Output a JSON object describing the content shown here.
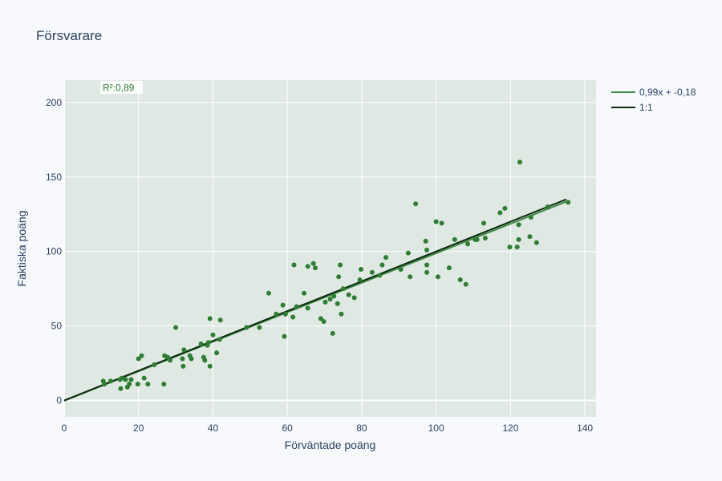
{
  "colors": {
    "page_bg": "#f7f9fd",
    "plot_bg": "#dfe8e2",
    "grid": "#ffffff",
    "points": "#2e7d32",
    "fit_line": "#3f8a45",
    "identity_line": "#0d2a10",
    "text": "#2a3f5f",
    "r2_text": "#2e7d32"
  },
  "chart_data": {
    "type": "scatter",
    "title": "Försvarare",
    "xlabel": "Förväntade poäng",
    "ylabel": "Faktiska poäng",
    "xlim": [
      0,
      143
    ],
    "ylim": [
      -11,
      215
    ],
    "xticks": [
      0,
      20,
      40,
      60,
      80,
      100,
      120,
      140
    ],
    "yticks": [
      0,
      50,
      100,
      150,
      200
    ],
    "grid": true,
    "legend_position": "top-right outside plot",
    "annotation": "R²:0,89",
    "lines": [
      {
        "name": "0,99x + -0,18",
        "slope": 0.99,
        "intercept": -0.18,
        "x_range": [
          0,
          135.5
        ]
      },
      {
        "name": "1:1",
        "slope": 1,
        "intercept": 0,
        "x_range": [
          0,
          135
        ]
      }
    ],
    "points": [
      [
        10.5,
        13
      ],
      [
        10.8,
        11
      ],
      [
        12.5,
        13
      ],
      [
        15,
        14
      ],
      [
        15.2,
        8
      ],
      [
        15.5,
        15
      ],
      [
        16.5,
        14
      ],
      [
        17,
        9
      ],
      [
        17.5,
        11
      ],
      [
        18,
        14
      ],
      [
        19.8,
        11
      ],
      [
        20,
        28
      ],
      [
        20.8,
        30
      ],
      [
        21.5,
        15
      ],
      [
        22.5,
        11
      ],
      [
        24.2,
        24
      ],
      [
        26.8,
        11
      ],
      [
        27,
        30
      ],
      [
        27.8,
        29
      ],
      [
        28.5,
        27
      ],
      [
        30,
        49
      ],
      [
        31.8,
        28
      ],
      [
        32,
        23
      ],
      [
        32.2,
        34
      ],
      [
        33.8,
        30
      ],
      [
        34.2,
        28
      ],
      [
        36.8,
        38
      ],
      [
        37.5,
        29
      ],
      [
        37.8,
        27
      ],
      [
        38.5,
        37
      ],
      [
        38.8,
        39
      ],
      [
        39.2,
        55
      ],
      [
        39.2,
        23
      ],
      [
        40,
        44
      ],
      [
        41,
        32
      ],
      [
        41.8,
        41
      ],
      [
        42,
        54
      ],
      [
        49,
        49
      ],
      [
        52.5,
        49
      ],
      [
        55,
        72
      ],
      [
        57,
        58
      ],
      [
        58.8,
        64
      ],
      [
        59.2,
        43
      ],
      [
        59.5,
        58
      ],
      [
        61.5,
        56
      ],
      [
        61.8,
        91
      ],
      [
        62.5,
        63
      ],
      [
        64.5,
        72
      ],
      [
        65.5,
        62
      ],
      [
        65.5,
        90
      ],
      [
        67,
        92
      ],
      [
        67.5,
        89
      ],
      [
        69,
        55
      ],
      [
        69.8,
        53
      ],
      [
        70.2,
        66
      ],
      [
        71.5,
        68
      ],
      [
        72.2,
        45
      ],
      [
        72.5,
        70
      ],
      [
        73.5,
        65
      ],
      [
        73.8,
        83
      ],
      [
        74.2,
        91
      ],
      [
        74.5,
        58
      ],
      [
        75,
        75
      ],
      [
        76.5,
        71
      ],
      [
        78,
        69
      ],
      [
        79.5,
        81
      ],
      [
        79.8,
        88
      ],
      [
        82.8,
        86
      ],
      [
        84.8,
        84
      ],
      [
        85.5,
        91
      ],
      [
        86.5,
        96
      ],
      [
        90.5,
        88
      ],
      [
        92.5,
        99
      ],
      [
        93,
        83
      ],
      [
        94.5,
        132
      ],
      [
        97.2,
        107
      ],
      [
        97.5,
        101
      ],
      [
        97.5,
        91
      ],
      [
        97.5,
        86
      ],
      [
        100,
        120
      ],
      [
        100.5,
        83
      ],
      [
        101.5,
        119
      ],
      [
        103.5,
        89
      ],
      [
        105,
        108
      ],
      [
        106.5,
        81
      ],
      [
        108,
        78
      ],
      [
        108.5,
        105
      ],
      [
        110.5,
        108
      ],
      [
        111,
        108
      ],
      [
        112.8,
        119
      ],
      [
        113.2,
        109
      ],
      [
        117.2,
        126
      ],
      [
        118.5,
        129
      ],
      [
        119.8,
        103
      ],
      [
        121.8,
        103
      ],
      [
        122.2,
        118
      ],
      [
        122.2,
        108
      ],
      [
        122.5,
        160
      ],
      [
        125.2,
        110
      ],
      [
        125.5,
        123
      ],
      [
        127,
        106
      ],
      [
        130,
        130
      ],
      [
        135.5,
        133
      ]
    ]
  }
}
